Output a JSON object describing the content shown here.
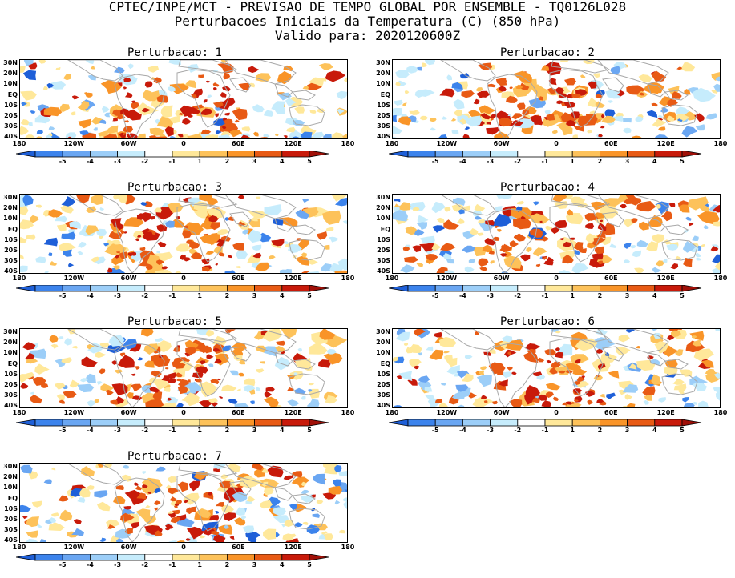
{
  "header": {
    "line1": "CPTEC/INPE/MCT - PREVISAO DE TEMPO GLOBAL POR ENSEMBLE - TQ0126L028",
    "line2": "Perturbacoes Iniciais da Temperatura (C) (850 hPa)",
    "line3": "Valido para: 2020120600Z"
  },
  "panels": [
    {
      "title": "Perturbacao: 1",
      "seed": 11
    },
    {
      "title": "Perturbacao: 2",
      "seed": 23
    },
    {
      "title": "Perturbacao: 3",
      "seed": 37
    },
    {
      "title": "Perturbacao: 4",
      "seed": 41
    },
    {
      "title": "Perturbacao: 5",
      "seed": 53
    },
    {
      "title": "Perturbacao: 6",
      "seed": 67
    },
    {
      "title": "Perturbacao: 7",
      "seed": 79
    }
  ],
  "lat_labels": [
    "30N",
    "20N",
    "10N",
    "EQ",
    "10S",
    "20S",
    "30S",
    "40S"
  ],
  "lon_labels": [
    "180",
    "120W",
    "60W",
    "0",
    "60E",
    "120E",
    "180"
  ],
  "colorbar": {
    "labels": [
      "-5",
      "-4",
      "-3",
      "-2",
      "-1",
      "1",
      "2",
      "3",
      "4",
      "5"
    ],
    "colors": [
      "#1e5fd8",
      "#3c83ec",
      "#6aa6f2",
      "#9ccef8",
      "#c6ecfc",
      "#ffffff",
      "#ffe89a",
      "#fdc25a",
      "#f99428",
      "#e85a14",
      "#c81a0a",
      "#a01008"
    ]
  },
  "map_colors": {
    "coast": "#a8a8a8",
    "warm": [
      "#ffe89a",
      "#fdc25a",
      "#f99428",
      "#e85a14",
      "#c81a0a"
    ],
    "cold": [
      "#c6ecfc",
      "#9ccef8",
      "#6aa6f2",
      "#3c83ec",
      "#1e5fd8"
    ]
  }
}
